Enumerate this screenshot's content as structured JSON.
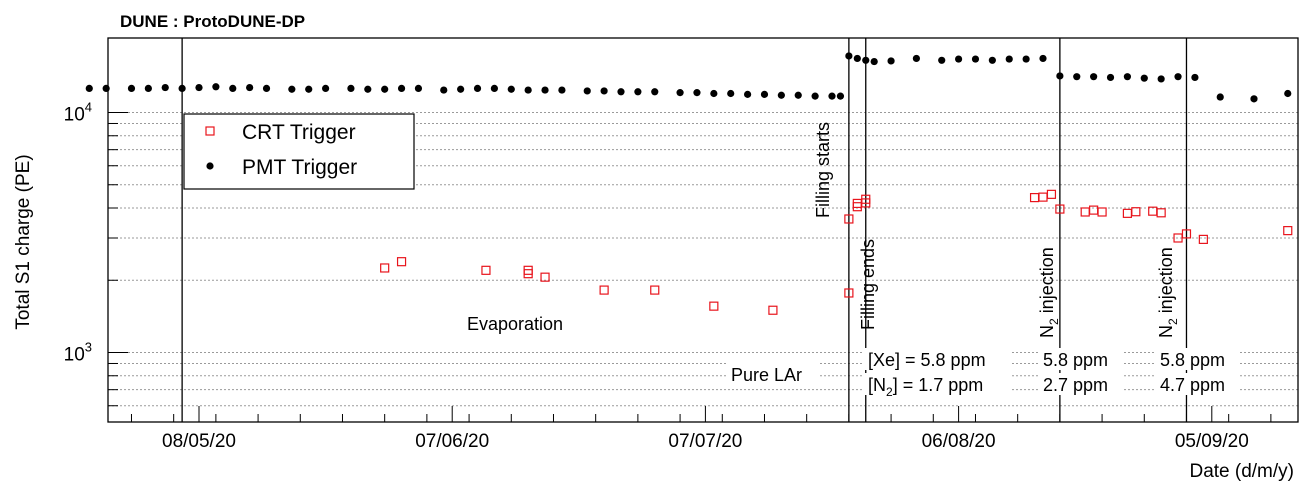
{
  "chart_data": {
    "type": "scatter",
    "title": "DUNE : ProtoDUNE-DP",
    "xlabel": "Date (d/m/y)",
    "ylabel": "Total S1 charge (PE)",
    "yscale": "log",
    "xlim": [
      "2020-04-20",
      "2020-09-23"
    ],
    "ylim": [
      500,
      20000
    ],
    "x_ticks": [
      "08/05/20",
      "07/06/20",
      "07/07/20",
      "06/08/20",
      "05/09/20"
    ],
    "y_ticks": [
      "10^3",
      "10^4"
    ],
    "grid": "horizontal dotted lines at y tick values",
    "legend_position": "top-left",
    "series": [
      {
        "name": "CRT Trigger",
        "marker": "open-square",
        "color": "#e8141c",
        "points": [
          [
            "2020-05-30",
            2250
          ],
          [
            "2020-06-01",
            2390
          ],
          [
            "2020-06-11",
            2200
          ],
          [
            "2020-06-16",
            2130
          ],
          [
            "2020-06-16",
            2200
          ],
          [
            "2020-06-18",
            2060
          ],
          [
            "2020-06-25",
            1820
          ],
          [
            "2020-07-01",
            1820
          ],
          [
            "2020-07-08",
            1560
          ],
          [
            "2020-07-15",
            1500
          ],
          [
            "2020-07-24",
            1770
          ],
          [
            "2020-07-24",
            3600
          ],
          [
            "2020-07-25",
            4050
          ],
          [
            "2020-07-25",
            4180
          ],
          [
            "2020-07-26",
            4200
          ],
          [
            "2020-07-26",
            4350
          ],
          [
            "2020-08-15",
            4420
          ],
          [
            "2020-08-16",
            4440
          ],
          [
            "2020-08-17",
            4560
          ],
          [
            "2020-08-18",
            3960
          ],
          [
            "2020-08-21",
            3850
          ],
          [
            "2020-08-22",
            3920
          ],
          [
            "2020-08-23",
            3850
          ],
          [
            "2020-08-26",
            3800
          ],
          [
            "2020-08-27",
            3860
          ],
          [
            "2020-08-29",
            3880
          ],
          [
            "2020-08-30",
            3820
          ],
          [
            "2020-09-01",
            3000
          ],
          [
            "2020-09-02",
            3120
          ],
          [
            "2020-09-04",
            2960
          ],
          [
            "2020-09-14",
            3220
          ]
        ]
      },
      {
        "name": "PMT Trigger",
        "marker": "filled-circle",
        "color": "#000000",
        "points": [
          [
            "2020-04-25",
            12600
          ],
          [
            "2020-04-27",
            12600
          ],
          [
            "2020-04-30",
            12600
          ],
          [
            "2020-05-02",
            12600
          ],
          [
            "2020-05-04",
            12700
          ],
          [
            "2020-05-06",
            12600
          ],
          [
            "2020-05-08",
            12700
          ],
          [
            "2020-05-10",
            12800
          ],
          [
            "2020-05-12",
            12600
          ],
          [
            "2020-05-14",
            12700
          ],
          [
            "2020-05-16",
            12600
          ],
          [
            "2020-05-19",
            12500
          ],
          [
            "2020-05-21",
            12500
          ],
          [
            "2020-05-23",
            12600
          ],
          [
            "2020-05-26",
            12600
          ],
          [
            "2020-05-28",
            12500
          ],
          [
            "2020-05-30",
            12500
          ],
          [
            "2020-06-01",
            12600
          ],
          [
            "2020-06-03",
            12600
          ],
          [
            "2020-06-06",
            12400
          ],
          [
            "2020-06-08",
            12500
          ],
          [
            "2020-06-10",
            12600
          ],
          [
            "2020-06-12",
            12600
          ],
          [
            "2020-06-14",
            12500
          ],
          [
            "2020-06-16",
            12400
          ],
          [
            "2020-06-18",
            12400
          ],
          [
            "2020-06-20",
            12400
          ],
          [
            "2020-06-23",
            12300
          ],
          [
            "2020-06-25",
            12300
          ],
          [
            "2020-06-27",
            12200
          ],
          [
            "2020-06-29",
            12200
          ],
          [
            "2020-07-01",
            12200
          ],
          [
            "2020-07-04",
            12100
          ],
          [
            "2020-07-06",
            12100
          ],
          [
            "2020-07-08",
            12000
          ],
          [
            "2020-07-10",
            12000
          ],
          [
            "2020-07-12",
            11900
          ],
          [
            "2020-07-14",
            11900
          ],
          [
            "2020-07-16",
            11800
          ],
          [
            "2020-07-18",
            11800
          ],
          [
            "2020-07-20",
            11700
          ],
          [
            "2020-07-22",
            11700
          ],
          [
            "2020-07-23",
            11700
          ],
          [
            "2020-07-24",
            17200
          ],
          [
            "2020-07-25",
            16800
          ],
          [
            "2020-07-26",
            16500
          ],
          [
            "2020-07-27",
            16300
          ],
          [
            "2020-07-29",
            16400
          ],
          [
            "2020-08-01",
            16800
          ],
          [
            "2020-08-04",
            16500
          ],
          [
            "2020-08-06",
            16700
          ],
          [
            "2020-08-08",
            16700
          ],
          [
            "2020-08-10",
            16500
          ],
          [
            "2020-08-12",
            16700
          ],
          [
            "2020-08-14",
            16700
          ],
          [
            "2020-08-16",
            16800
          ],
          [
            "2020-08-18",
            14200
          ],
          [
            "2020-08-20",
            14100
          ],
          [
            "2020-08-22",
            14100
          ],
          [
            "2020-08-24",
            14000
          ],
          [
            "2020-08-26",
            14100
          ],
          [
            "2020-08-28",
            13900
          ],
          [
            "2020-08-30",
            13800
          ],
          [
            "2020-09-01",
            14100
          ],
          [
            "2020-09-03",
            14000
          ],
          [
            "2020-09-06",
            11600
          ],
          [
            "2020-09-10",
            11400
          ],
          [
            "2020-09-14",
            12000
          ]
        ]
      }
    ],
    "vertical_lines": [
      {
        "date": "2020-05-06",
        "label": ""
      },
      {
        "date": "2020-07-24",
        "label": "Filling starts"
      },
      {
        "date": "2020-07-26",
        "label": "Filling ends"
      },
      {
        "date": "2020-08-18",
        "label": "N2 injection"
      },
      {
        "date": "2020-09-02",
        "label": "N2 injection"
      }
    ],
    "annotations": [
      {
        "text": "Evaporation"
      },
      {
        "text": "Pure LAr"
      },
      {
        "text": "[Xe] = 5.8 ppm",
        "sub": ""
      },
      {
        "text": "[N2] = 1.7 ppm"
      },
      {
        "text": "5.8 ppm"
      },
      {
        "text": "2.7 ppm"
      },
      {
        "text": "5.8 ppm"
      },
      {
        "text": "4.7 ppm"
      }
    ]
  }
}
